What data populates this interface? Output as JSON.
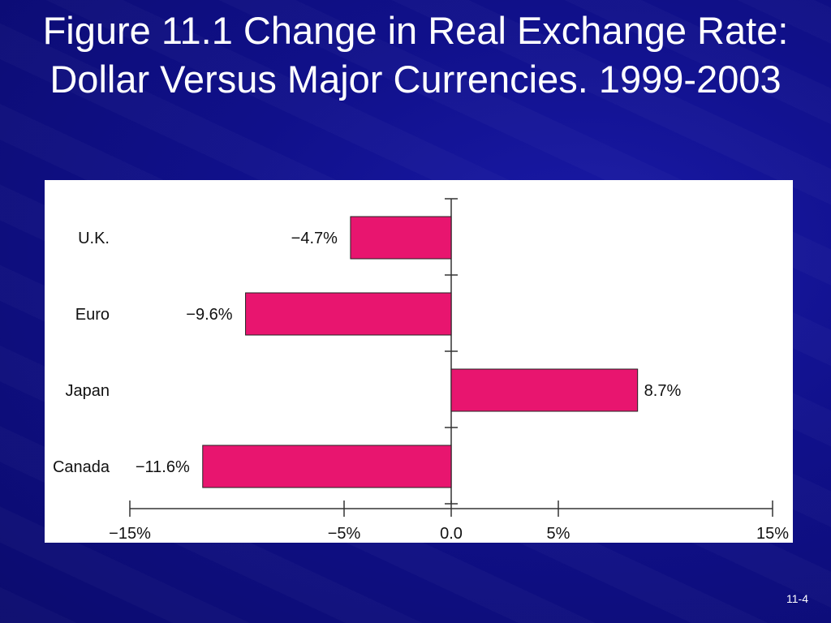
{
  "slide": {
    "title": "Figure 11.1 Change in Real Exchange Rate: Dollar Versus Major Currencies. 1999-2003",
    "page_number": "11-4"
  },
  "colors": {
    "bar": "#e8156f",
    "bar_stroke": "#222222",
    "axis": "#333333",
    "text": "#111111"
  },
  "chart_data": {
    "type": "bar",
    "orientation": "horizontal",
    "title": "Figure 11.1 Change in Real Exchange Rate: Dollar Versus Major Currencies. 1999-2003",
    "categories": [
      "U.K.",
      "Euro",
      "Japan",
      "Canada"
    ],
    "values": [
      -4.7,
      -9.6,
      8.7,
      -11.6
    ],
    "value_labels": [
      "−4.7%",
      "−9.6%",
      "8.7%",
      "−11.6%"
    ],
    "xlim": [
      -15,
      15
    ],
    "x_ticks": [
      -15,
      -5,
      0,
      5,
      15
    ],
    "x_tick_labels": [
      "−15%",
      "−5%",
      "0.0",
      "5%",
      "15%"
    ],
    "xlabel": "",
    "ylabel": "",
    "grid": false,
    "legend": "none"
  }
}
